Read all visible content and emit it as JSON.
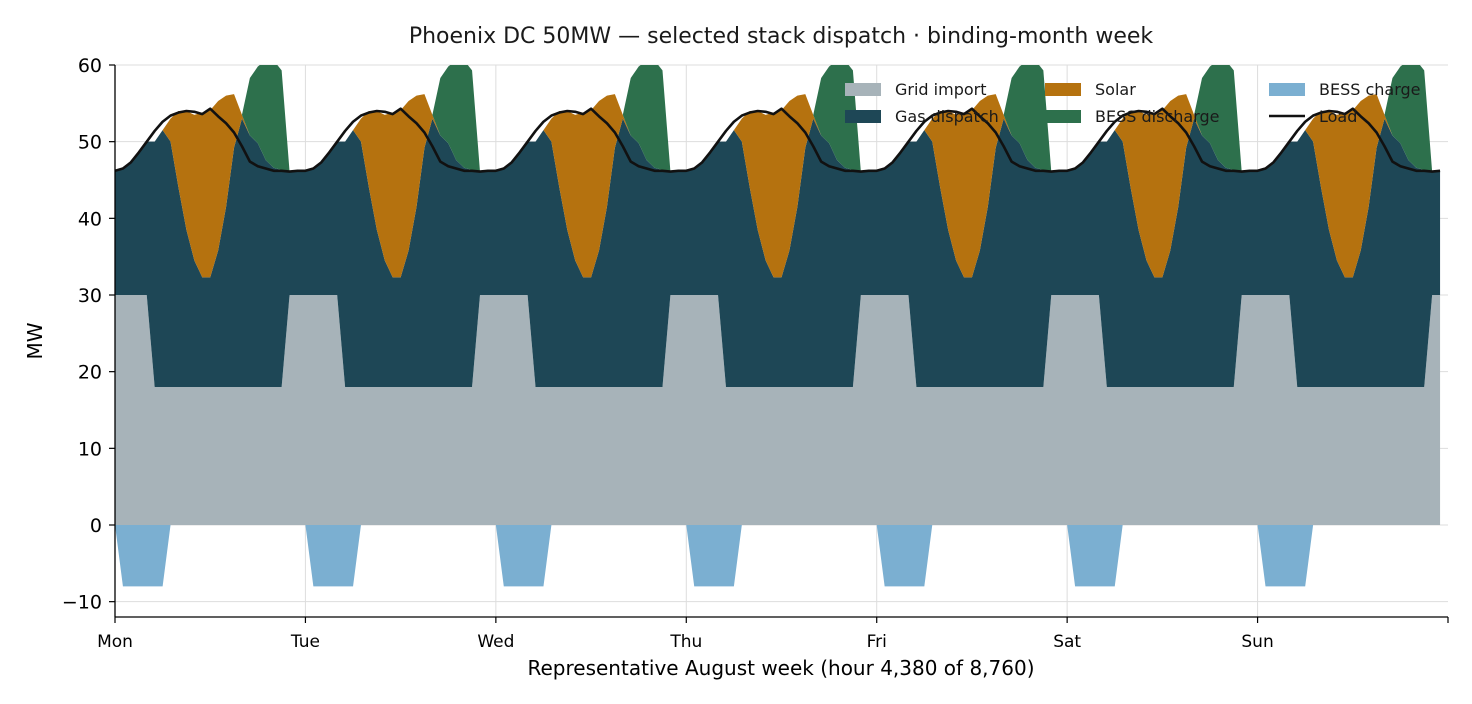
{
  "chart_data": {
    "type": "area",
    "title": "Phoenix DC 50MW — selected stack dispatch · binding-month week",
    "xlabel": "Representative August week (hour 4,380 of 8,760)",
    "ylabel": "MW",
    "xlim": [
      0,
      168
    ],
    "ylim": [
      -12,
      60
    ],
    "y_ticks": [
      -10,
      0,
      10,
      20,
      30,
      40,
      50,
      60
    ],
    "x_ticks": [
      {
        "hour": 0,
        "label": "Mon"
      },
      {
        "hour": 24,
        "label": "Tue"
      },
      {
        "hour": 48,
        "label": "Wed"
      },
      {
        "hour": 72,
        "label": "Thu"
      },
      {
        "hour": 96,
        "label": "Fri"
      },
      {
        "hour": 120,
        "label": "Sat"
      },
      {
        "hour": 144,
        "label": "Sun"
      }
    ],
    "grid": true,
    "legend_position": "top-right",
    "hours_per_day": 24,
    "days": 7,
    "hour_of_day": [
      0,
      1,
      2,
      3,
      4,
      5,
      6,
      7,
      8,
      9,
      10,
      11,
      12,
      13,
      14,
      15,
      16,
      17,
      18,
      19,
      20,
      21,
      22,
      23
    ],
    "daily_profile_mw": {
      "grid_import": [
        30,
        30,
        30,
        30,
        30,
        18,
        18,
        18,
        18,
        18,
        18,
        18,
        18,
        18,
        18,
        18,
        18,
        18,
        18,
        18,
        18,
        18,
        30,
        30
      ],
      "solar": [
        0,
        0,
        0,
        0,
        0,
        0,
        0,
        3,
        10,
        15.5,
        19,
        21.5,
        21.8,
        19.5,
        14.5,
        7,
        0.5,
        0,
        0,
        0,
        0,
        0,
        0,
        0
      ],
      "gas_dispatch": [
        16.2,
        16.5,
        17.3,
        18.6,
        20,
        32,
        33.5,
        32,
        26,
        20.5,
        16.5,
        14.3,
        14.3,
        17.8,
        23.5,
        31.2,
        35,
        32.8,
        31.8,
        29.6,
        28.6,
        28.3,
        16.1,
        16.2
      ],
      "bess_discharge": [
        0,
        0,
        0,
        0,
        0,
        0,
        0,
        0,
        0,
        0,
        0,
        0,
        0,
        0,
        0,
        0,
        0,
        7.5,
        10,
        13,
        14,
        13,
        0,
        0
      ],
      "bess_charge": [
        0,
        -8,
        -8,
        -8,
        -8,
        -8,
        -8,
        0,
        0,
        0,
        0,
        0,
        0,
        0,
        0,
        0,
        0,
        0,
        0,
        0,
        0,
        0,
        0,
        0
      ],
      "load": [
        46.2,
        46.5,
        47.3,
        48.6,
        50,
        51.4,
        52.6,
        53.4,
        53.8,
        54,
        53.9,
        53.6,
        54.3,
        53.3,
        52.4,
        51.2,
        49.4,
        47.4,
        46.8,
        46.5,
        46.2,
        46.2,
        46.1,
        46.2
      ]
    },
    "series": [
      {
        "key": "grid_import",
        "name": "Grid import",
        "color": "#a7b3b9",
        "kind": "area"
      },
      {
        "key": "gas_dispatch",
        "name": "Gas dispatch",
        "color": "#1e4756",
        "kind": "area"
      },
      {
        "key": "solar",
        "name": "Solar",
        "color": "#b5720f",
        "kind": "area"
      },
      {
        "key": "bess_discharge",
        "name": "BESS discharge",
        "color": "#2d704c",
        "kind": "area"
      },
      {
        "key": "bess_charge",
        "name": "BESS charge",
        "color": "#7bafd1",
        "kind": "area"
      },
      {
        "key": "load",
        "name": "Load",
        "color": "#111111",
        "kind": "line"
      }
    ]
  }
}
